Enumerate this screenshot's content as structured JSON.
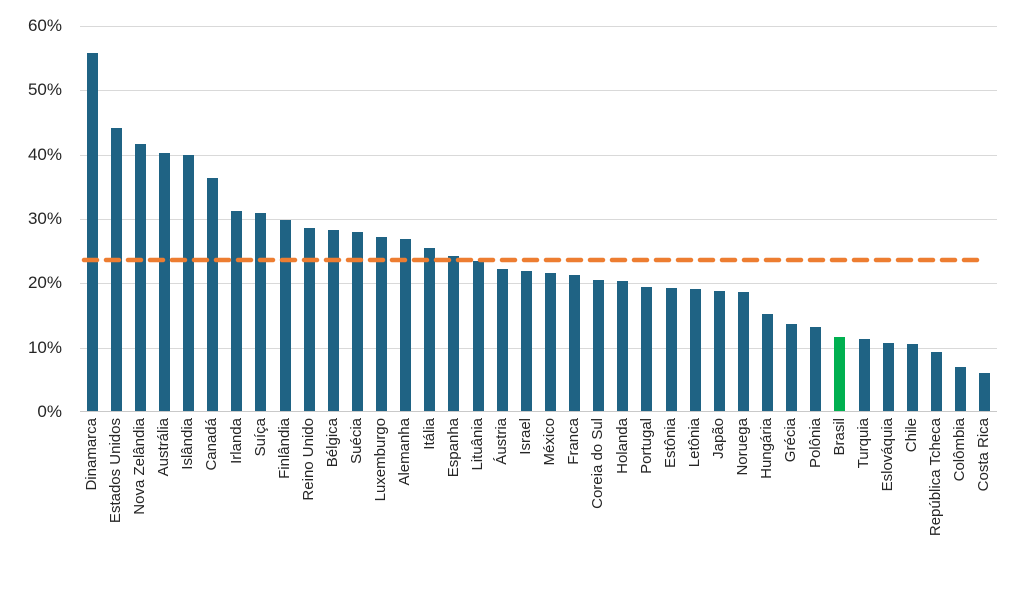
{
  "chart_data": {
    "type": "bar",
    "title": "",
    "xlabel": "",
    "ylabel": "",
    "ylim": [
      0,
      60
    ],
    "grid": "horizontal",
    "legend_position": "none",
    "yticks": [
      {
        "value": 0,
        "label": "0%"
      },
      {
        "value": 10,
        "label": "10%"
      },
      {
        "value": 20,
        "label": "20%"
      },
      {
        "value": 30,
        "label": "30%"
      },
      {
        "value": 40,
        "label": "40%"
      },
      {
        "value": 50,
        "label": "50%"
      },
      {
        "value": 60,
        "label": "60%"
      }
    ],
    "categories": [
      "Dinamarca",
      "Estados Unidos",
      "Nova Zelândia",
      "Austrália",
      "Islândia",
      "Canadá",
      "Irlanda",
      "Suíça",
      "Finlândia",
      "Reino Unido",
      "Bélgica",
      "Suécia",
      "Luxemburgo",
      "Alemanha",
      "Itália",
      "Espanha",
      "Lituânia",
      "Áustria",
      "Israel",
      "México",
      "Franca",
      "Coreia do Sul",
      "Holanda",
      "Portugal",
      "Estônia",
      "Letônia",
      "Japão",
      "Noruega",
      "Hungária",
      "Grécia",
      "Polônia",
      "Brasil",
      "Turquia",
      "Eslováquia",
      "Chile",
      "República Tcheca",
      "Colômbia",
      "Costa Rica"
    ],
    "values": [
      55.8,
      44.1,
      41.6,
      40.3,
      39.9,
      36.4,
      31.3,
      31.0,
      29.9,
      28.6,
      28.3,
      28.0,
      27.2,
      26.9,
      25.5,
      24.2,
      23.4,
      22.3,
      21.9,
      21.6,
      21.3,
      20.5,
      20.4,
      19.4,
      19.2,
      19.1,
      18.8,
      18.6,
      15.2,
      13.7,
      13.2,
      11.6,
      11.3,
      10.7,
      10.5,
      9.3,
      7.0,
      6.1
    ],
    "highlight": {
      "category": "Brasil",
      "color": "#00B050"
    },
    "reference_line": {
      "value": 23.6,
      "style": "dashed",
      "color": "#ED7D31"
    },
    "colors": {
      "bar": "#1F6384",
      "gridline": "#D9D9D9",
      "axis_line": "#C9C9C9",
      "text": "#262626"
    }
  }
}
